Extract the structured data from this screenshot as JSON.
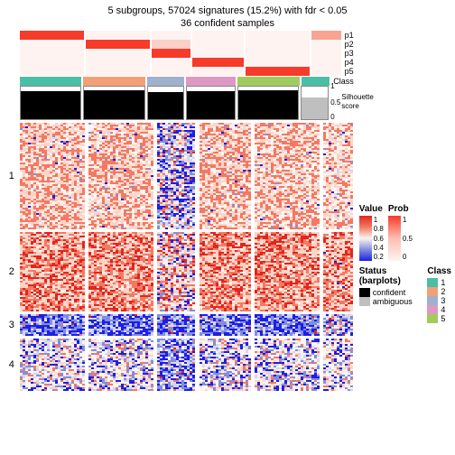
{
  "title_line1": "5 subgroups, 57024 signatures (15.2%) with fdr < 0.05",
  "title_line2": "36 confident samples",
  "group_widths": [
    75,
    75,
    45,
    60,
    75,
    34
  ],
  "p_rows": {
    "labels": [
      "p1",
      "p2",
      "p3",
      "p4",
      "p5"
    ],
    "colors": [
      [
        "#f73b2b",
        "#fef3f0",
        "#fef3f0",
        "#fef3f0",
        "#fef3f0",
        "#f9a393"
      ],
      [
        "#fef3f0",
        "#f73b2b",
        "#fbd0c6",
        "#fef3f0",
        "#fef3f0",
        "#fef3f0"
      ],
      [
        "#fef3f0",
        "#fef3f0",
        "#f73b2b",
        "#fef3f0",
        "#fef3f0",
        "#fef3f0"
      ],
      [
        "#fef3f0",
        "#fef3f0",
        "#fef3f0",
        "#f73b2b",
        "#fef3f0",
        "#fef3f0"
      ],
      [
        "#fef3f0",
        "#fef3f0",
        "#fef3f0",
        "#fef3f0",
        "#f73b2b",
        "#fef3f0"
      ]
    ]
  },
  "class_row": {
    "label": "Class",
    "colors": [
      "#4bbfa5",
      "#f3a078",
      "#a0b1ce",
      "#dd99c3",
      "#a2cb5f",
      "#4bbfa5"
    ]
  },
  "silhouette": {
    "label": "Silhouette score",
    "white_heights": [
      5,
      4,
      6,
      5,
      4,
      14
    ],
    "axis": [
      "1",
      "0.5",
      "0"
    ]
  },
  "row_groups": {
    "labels": [
      "1",
      "2",
      "3",
      "4"
    ],
    "heights": [
      118,
      88,
      24,
      58
    ]
  },
  "heatmap_palette": {
    "red_high": "#e1261e",
    "red_mid": "#f37963",
    "red_low": "#fcd5c8",
    "white": "#fbf4f0",
    "blue_low": "#cfd7f2",
    "blue_mid": "#818ee0",
    "blue_high": "#1e1ee6"
  },
  "legends": {
    "value": {
      "title": "Value",
      "ticks": [
        "1",
        "0.8",
        "0.6",
        "0.4",
        "0.2"
      ]
    },
    "prob": {
      "title": "Prob",
      "ticks": [
        "1",
        "0.5",
        "0"
      ]
    },
    "status": {
      "title": "Status (barplots)",
      "items": [
        {
          "color": "#000000",
          "label": "confident"
        },
        {
          "color": "#bfbfbf",
          "label": "ambiguous"
        }
      ]
    },
    "class_legend": {
      "title": "Class",
      "items": [
        {
          "color": "#4bbfa5",
          "label": "1"
        },
        {
          "color": "#f3a078",
          "label": "2"
        },
        {
          "color": "#a0b1ce",
          "label": "3"
        },
        {
          "color": "#dd99c3",
          "label": "4"
        },
        {
          "color": "#a2cb5f",
          "label": "5"
        }
      ]
    }
  }
}
